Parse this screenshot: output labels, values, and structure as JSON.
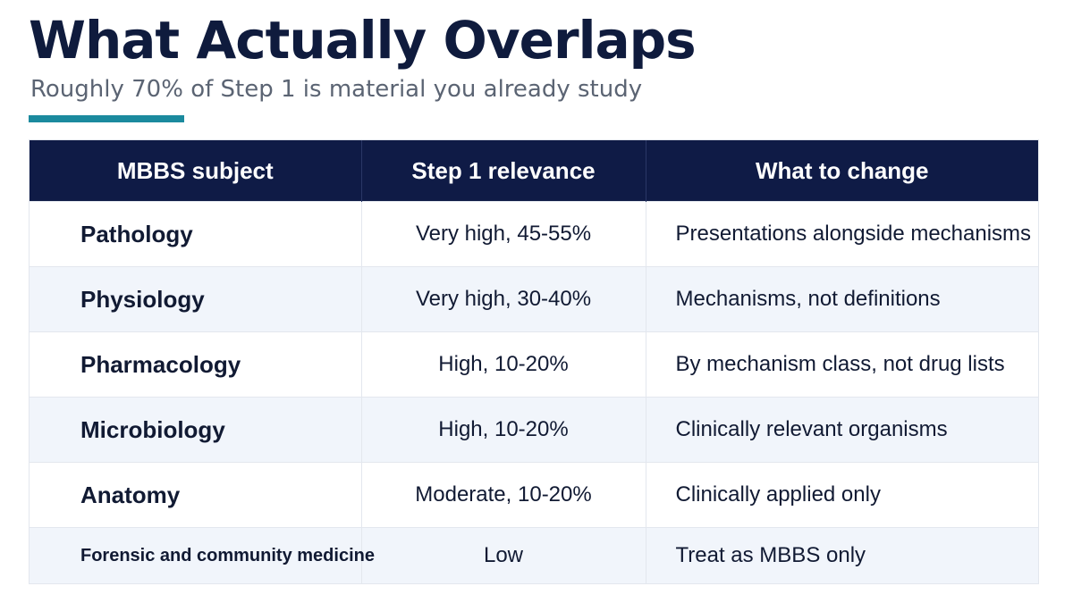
{
  "header": {
    "title": "What Actually Overlaps",
    "subtitle": "Roughly 70% of Step 1 is material you already study"
  },
  "colors": {
    "title": "#0f1b3d",
    "accent": "#1b8a9e",
    "table_header_bg": "#0f1b46",
    "alt_row_bg": "#f1f5fb"
  },
  "table": {
    "columns": [
      "MBBS subject",
      "Step 1 relevance",
      "What to change"
    ],
    "rows": [
      {
        "subject": "Pathology",
        "relevance": "Very high, 45-55%",
        "change": "Presentations alongside mechanisms"
      },
      {
        "subject": "Physiology",
        "relevance": "Very high, 30-40%",
        "change": "Mechanisms, not definitions"
      },
      {
        "subject": "Pharmacology",
        "relevance": "High, 10-20%",
        "change": "By mechanism class, not drug lists"
      },
      {
        "subject": "Microbiology",
        "relevance": "High, 10-20%",
        "change": "Clinically relevant organisms"
      },
      {
        "subject": "Anatomy",
        "relevance": "Moderate, 10-20%",
        "change": "Clinically applied only"
      },
      {
        "subject": "Forensic and community medicine",
        "relevance": "Low",
        "change": "Treat as MBBS only"
      }
    ]
  }
}
